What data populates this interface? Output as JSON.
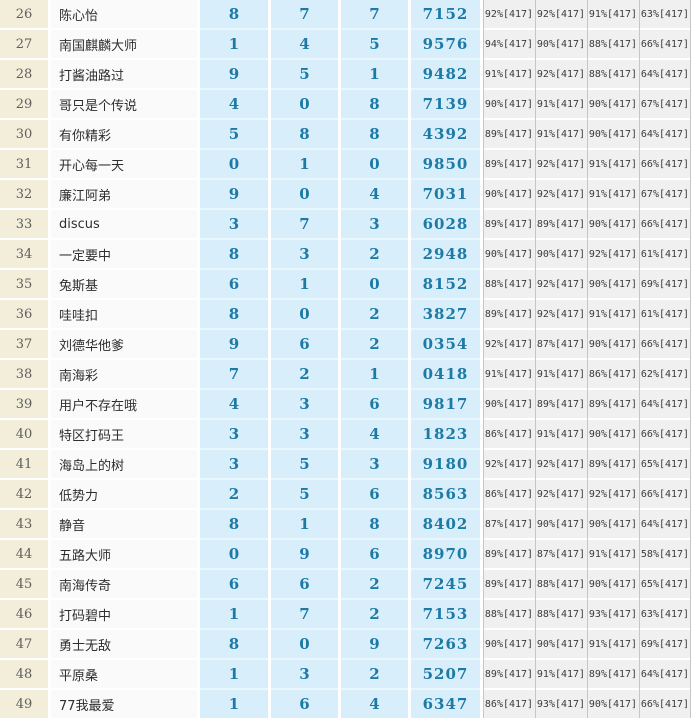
{
  "colors": {
    "rank_bg": "#f2eeda",
    "username_bg": "#fafafa",
    "number_cell_bg": "#d8effb",
    "number_cell_gap": "#e9f7fe",
    "number_text": "#1d7aa6",
    "stats_bg": "#f0f0f0",
    "stats_divider": "#c6c6c6",
    "rank_text": "#5f5f5f"
  },
  "table": {
    "rows": [
      {
        "rank": "26",
        "name": "陈心怡",
        "nums": [
          "8",
          "7",
          "7"
        ],
        "code": "7152",
        "stats": [
          "92%[417]",
          "92%[417]",
          "91%[417]",
          "63%[417]"
        ]
      },
      {
        "rank": "27",
        "name": "南国麒麟大师",
        "nums": [
          "1",
          "4",
          "5"
        ],
        "code": "9576",
        "stats": [
          "94%[417]",
          "90%[417]",
          "88%[417]",
          "66%[417]"
        ]
      },
      {
        "rank": "28",
        "name": "打酱油路过",
        "nums": [
          "9",
          "5",
          "1"
        ],
        "code": "9482",
        "stats": [
          "91%[417]",
          "92%[417]",
          "88%[417]",
          "64%[417]"
        ]
      },
      {
        "rank": "29",
        "name": "哥只是个传说",
        "nums": [
          "4",
          "0",
          "8"
        ],
        "code": "7139",
        "stats": [
          "90%[417]",
          "91%[417]",
          "90%[417]",
          "67%[417]"
        ]
      },
      {
        "rank": "30",
        "name": "有你精彩",
        "nums": [
          "5",
          "8",
          "8"
        ],
        "code": "4392",
        "stats": [
          "89%[417]",
          "91%[417]",
          "90%[417]",
          "64%[417]"
        ]
      },
      {
        "rank": "31",
        "name": "开心每一天",
        "nums": [
          "0",
          "1",
          "0"
        ],
        "code": "9850",
        "stats": [
          "89%[417]",
          "92%[417]",
          "91%[417]",
          "66%[417]"
        ]
      },
      {
        "rank": "32",
        "name": "廉江阿弟",
        "nums": [
          "9",
          "0",
          "4"
        ],
        "code": "7031",
        "stats": [
          "90%[417]",
          "92%[417]",
          "91%[417]",
          "67%[417]"
        ]
      },
      {
        "rank": "33",
        "name": "discus",
        "nums": [
          "3",
          "7",
          "3"
        ],
        "code": "6028",
        "stats": [
          "89%[417]",
          "89%[417]",
          "90%[417]",
          "66%[417]"
        ]
      },
      {
        "rank": "34",
        "name": "一定要中",
        "nums": [
          "8",
          "3",
          "2"
        ],
        "code": "2948",
        "stats": [
          "90%[417]",
          "90%[417]",
          "92%[417]",
          "61%[417]"
        ]
      },
      {
        "rank": "35",
        "name": "兔斯基",
        "nums": [
          "6",
          "1",
          "0"
        ],
        "code": "8152",
        "stats": [
          "88%[417]",
          "92%[417]",
          "90%[417]",
          "69%[417]"
        ]
      },
      {
        "rank": "36",
        "name": "哇哇扣",
        "nums": [
          "8",
          "0",
          "2"
        ],
        "code": "3827",
        "stats": [
          "89%[417]",
          "92%[417]",
          "91%[417]",
          "61%[417]"
        ]
      },
      {
        "rank": "37",
        "name": "刘德华他爹",
        "nums": [
          "9",
          "6",
          "2"
        ],
        "code": "0354",
        "stats": [
          "92%[417]",
          "87%[417]",
          "90%[417]",
          "66%[417]"
        ]
      },
      {
        "rank": "38",
        "name": "南海彩",
        "nums": [
          "7",
          "2",
          "1"
        ],
        "code": "0418",
        "stats": [
          "91%[417]",
          "91%[417]",
          "86%[417]",
          "62%[417]"
        ]
      },
      {
        "rank": "39",
        "name": "用户不存在哦",
        "nums": [
          "4",
          "3",
          "6"
        ],
        "code": "9817",
        "stats": [
          "90%[417]",
          "89%[417]",
          "89%[417]",
          "64%[417]"
        ]
      },
      {
        "rank": "40",
        "name": "特区打码王",
        "nums": [
          "3",
          "3",
          "4"
        ],
        "code": "1823",
        "stats": [
          "86%[417]",
          "91%[417]",
          "90%[417]",
          "66%[417]"
        ]
      },
      {
        "rank": "41",
        "name": "海岛上的树",
        "nums": [
          "3",
          "5",
          "3"
        ],
        "code": "9180",
        "stats": [
          "92%[417]",
          "92%[417]",
          "89%[417]",
          "65%[417]"
        ]
      },
      {
        "rank": "42",
        "name": "低势力",
        "nums": [
          "2",
          "5",
          "6"
        ],
        "code": "8563",
        "stats": [
          "86%[417]",
          "92%[417]",
          "92%[417]",
          "66%[417]"
        ]
      },
      {
        "rank": "43",
        "name": "静音",
        "nums": [
          "8",
          "1",
          "8"
        ],
        "code": "8402",
        "stats": [
          "87%[417]",
          "90%[417]",
          "90%[417]",
          "64%[417]"
        ]
      },
      {
        "rank": "44",
        "name": "五路大师",
        "nums": [
          "0",
          "9",
          "6"
        ],
        "code": "8970",
        "stats": [
          "89%[417]",
          "87%[417]",
          "91%[417]",
          "58%[417]"
        ]
      },
      {
        "rank": "45",
        "name": "南海传奇",
        "nums": [
          "6",
          "6",
          "2"
        ],
        "code": "7245",
        "stats": [
          "89%[417]",
          "88%[417]",
          "90%[417]",
          "65%[417]"
        ]
      },
      {
        "rank": "46",
        "name": "打码碧中",
        "nums": [
          "1",
          "7",
          "2"
        ],
        "code": "7153",
        "stats": [
          "88%[417]",
          "88%[417]",
          "93%[417]",
          "63%[417]"
        ]
      },
      {
        "rank": "47",
        "name": "勇士无敌",
        "nums": [
          "8",
          "0",
          "9"
        ],
        "code": "7263",
        "stats": [
          "90%[417]",
          "90%[417]",
          "91%[417]",
          "69%[417]"
        ]
      },
      {
        "rank": "48",
        "name": "平原桑",
        "nums": [
          "1",
          "3",
          "2"
        ],
        "code": "5207",
        "stats": [
          "89%[417]",
          "91%[417]",
          "89%[417]",
          "64%[417]"
        ]
      },
      {
        "rank": "49",
        "name": "77我最爱",
        "nums": [
          "1",
          "6",
          "4"
        ],
        "code": "6347",
        "stats": [
          "86%[417]",
          "93%[417]",
          "90%[417]",
          "66%[417]"
        ]
      }
    ]
  }
}
